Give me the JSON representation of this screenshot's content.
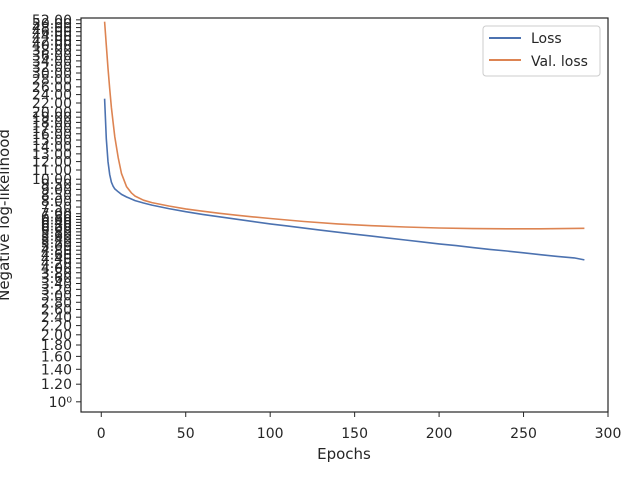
{
  "chart_data": {
    "type": "line",
    "title": "",
    "xlabel": "Epochs",
    "ylabel": "Negative log-likelihood",
    "xlim": [
      -12,
      300
    ],
    "ylim": [
      0.9,
      53.0
    ],
    "yscale": "log",
    "x_ticks": [
      "0",
      "50",
      "100",
      "150",
      "200",
      "250",
      "300"
    ],
    "y_ticks": [
      {
        "value": 1.0,
        "label": "10⁰"
      },
      {
        "value": 1.2,
        "label": "1.20"
      },
      {
        "value": 1.4,
        "label": "1.40"
      },
      {
        "value": 1.6,
        "label": "1.60"
      },
      {
        "value": 1.8,
        "label": "1.80"
      },
      {
        "value": 2.0,
        "label": "2.00"
      },
      {
        "value": 2.2,
        "label": "2.20"
      },
      {
        "value": 2.4,
        "label": "2.40"
      },
      {
        "value": 2.6,
        "label": "2.60"
      },
      {
        "value": 2.8,
        "label": "2.80"
      },
      {
        "value": 3.0,
        "label": "3.00"
      },
      {
        "value": 3.2,
        "label": "3.20"
      },
      {
        "value": 3.4,
        "label": "3.40"
      },
      {
        "value": 3.6,
        "label": "3.60"
      },
      {
        "value": 3.8,
        "label": "3.80"
      },
      {
        "value": 4.0,
        "label": "4.00"
      },
      {
        "value": 4.2,
        "label": "4.20"
      },
      {
        "value": 4.4,
        "label": "4.40"
      },
      {
        "value": 4.6,
        "label": "4.60"
      },
      {
        "value": 4.8,
        "label": "4.80"
      },
      {
        "value": 5.0,
        "label": "5.00"
      },
      {
        "value": 5.2,
        "label": "5.20"
      },
      {
        "value": 5.4,
        "label": "5.40"
      },
      {
        "value": 5.6,
        "label": "5.60"
      },
      {
        "value": 5.8,
        "label": "5.80"
      },
      {
        "value": 6.0,
        "label": "6.00"
      },
      {
        "value": 6.2,
        "label": "6.20"
      },
      {
        "value": 6.4,
        "label": "6.40"
      },
      {
        "value": 6.6,
        "label": "6.60"
      },
      {
        "value": 6.8,
        "label": "6.80"
      },
      {
        "value": 7.0,
        "label": "7.00"
      },
      {
        "value": 7.5,
        "label": "7.50"
      },
      {
        "value": 8.0,
        "label": "8.00"
      },
      {
        "value": 8.5,
        "label": "8.50"
      },
      {
        "value": 9.0,
        "label": "9.00"
      },
      {
        "value": 9.5,
        "label": "9.50"
      },
      {
        "value": 10.0,
        "label": "10.00"
      },
      {
        "value": 11.0,
        "label": "11.00"
      },
      {
        "value": 12.0,
        "label": "12.00"
      },
      {
        "value": 13.0,
        "label": "13.00"
      },
      {
        "value": 14.0,
        "label": "14.00"
      },
      {
        "value": 15.0,
        "label": "15.00"
      },
      {
        "value": 16.0,
        "label": "16.00"
      },
      {
        "value": 17.0,
        "label": "17.00"
      },
      {
        "value": 18.0,
        "label": "18.00"
      },
      {
        "value": 19.0,
        "label": "19.00"
      },
      {
        "value": 20.0,
        "label": "20.00"
      },
      {
        "value": 22.0,
        "label": "22.00"
      },
      {
        "value": 24.0,
        "label": "24.00"
      },
      {
        "value": 26.0,
        "label": "26.00"
      },
      {
        "value": 28.0,
        "label": "28.00"
      },
      {
        "value": 30.0,
        "label": "30.00"
      },
      {
        "value": 32.0,
        "label": "32.00"
      },
      {
        "value": 34.0,
        "label": "34.00"
      },
      {
        "value": 36.0,
        "label": "36.00"
      },
      {
        "value": 38.0,
        "label": "38.00"
      },
      {
        "value": 40.0,
        "label": "40.00"
      },
      {
        "value": 42.0,
        "label": "42.00"
      },
      {
        "value": 44.0,
        "label": "44.00"
      },
      {
        "value": 46.0,
        "label": "46.00"
      },
      {
        "value": 48.0,
        "label": "48.00"
      },
      {
        "value": 50.0,
        "label": "50.00"
      },
      {
        "value": 52.0,
        "label": "52.00"
      }
    ],
    "legend_position": "top-right",
    "grid": false,
    "series": [
      {
        "name": "Loss",
        "color": "#4c72b0",
        "x": [
          2,
          3,
          4,
          5,
          6,
          7,
          8,
          10,
          12,
          15,
          20,
          25,
          30,
          40,
          50,
          60,
          70,
          80,
          90,
          100,
          110,
          120,
          130,
          140,
          150,
          160,
          170,
          180,
          190,
          200,
          210,
          220,
          230,
          240,
          250,
          260,
          270,
          280,
          286
        ],
        "y": [
          23.0,
          15.2,
          12.0,
          10.5,
          9.7,
          9.3,
          9.05,
          8.78,
          8.55,
          8.32,
          8.02,
          7.82,
          7.65,
          7.38,
          7.15,
          6.95,
          6.78,
          6.61,
          6.45,
          6.3,
          6.17,
          6.03,
          5.9,
          5.78,
          5.66,
          5.55,
          5.44,
          5.33,
          5.23,
          5.12,
          5.03,
          4.93,
          4.84,
          4.76,
          4.67,
          4.58,
          4.5,
          4.43,
          4.34
        ]
      },
      {
        "name": "Val. loss",
        "color": "#dd8452",
        "x": [
          2,
          3,
          4,
          5,
          6,
          7,
          8,
          10,
          12,
          15,
          18,
          20,
          25,
          30,
          40,
          50,
          60,
          70,
          80,
          90,
          100,
          120,
          140,
          160,
          180,
          200,
          220,
          240,
          260,
          286
        ],
        "y": [
          51.0,
          40.0,
          31.5,
          25.5,
          21.0,
          18.0,
          15.5,
          12.5,
          10.6,
          9.25,
          8.65,
          8.4,
          8.05,
          7.85,
          7.58,
          7.36,
          7.18,
          7.03,
          6.89,
          6.77,
          6.66,
          6.46,
          6.3,
          6.18,
          6.1,
          6.04,
          6.0,
          5.99,
          5.99,
          6.02
        ]
      }
    ]
  }
}
